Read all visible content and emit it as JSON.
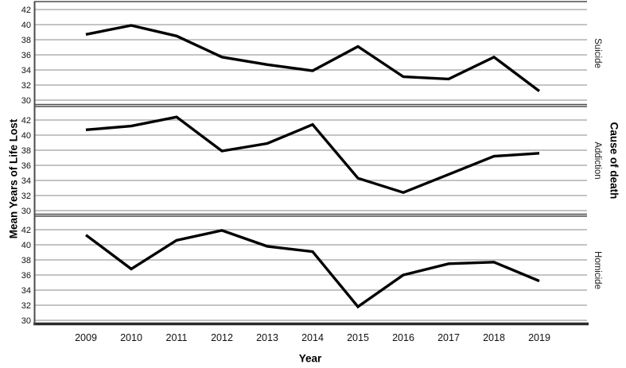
{
  "figure": {
    "background": "#ffffff",
    "series_color": "#000000",
    "gridline_color": "#a0a0a0",
    "border_color": "#4d4d4d",
    "baseline_color": "#2b2b2b"
  },
  "chart_data": {
    "type": "line",
    "title": "",
    "xlabel": "Year",
    "ylabel": "Mean Years of Life Lost",
    "panel_axis_label": "Cause of death",
    "x": [
      "2009",
      "2010",
      "2011",
      "2012",
      "2013",
      "2014",
      "2015",
      "2016",
      "2017",
      "2018",
      "2019"
    ],
    "yticks": [
      42,
      40,
      38,
      36,
      34,
      32,
      30
    ],
    "ylim": [
      30,
      42
    ],
    "grid": true,
    "legend": "none",
    "panels": [
      {
        "name": "Suicide",
        "values": [
          38.7,
          39.9,
          38.5,
          35.7,
          34.7,
          33.9,
          37.1,
          33.1,
          32.8,
          35.7,
          31.2
        ]
      },
      {
        "name": "Addiction",
        "values": [
          40.7,
          41.2,
          42.4,
          37.9,
          38.9,
          41.4,
          34.3,
          32.4,
          34.8,
          37.2,
          37.6
        ]
      },
      {
        "name": "Homicide",
        "values": [
          41.3,
          36.8,
          40.6,
          41.9,
          39.8,
          39.1,
          31.8,
          36.0,
          37.5,
          37.7,
          35.2
        ]
      }
    ]
  }
}
